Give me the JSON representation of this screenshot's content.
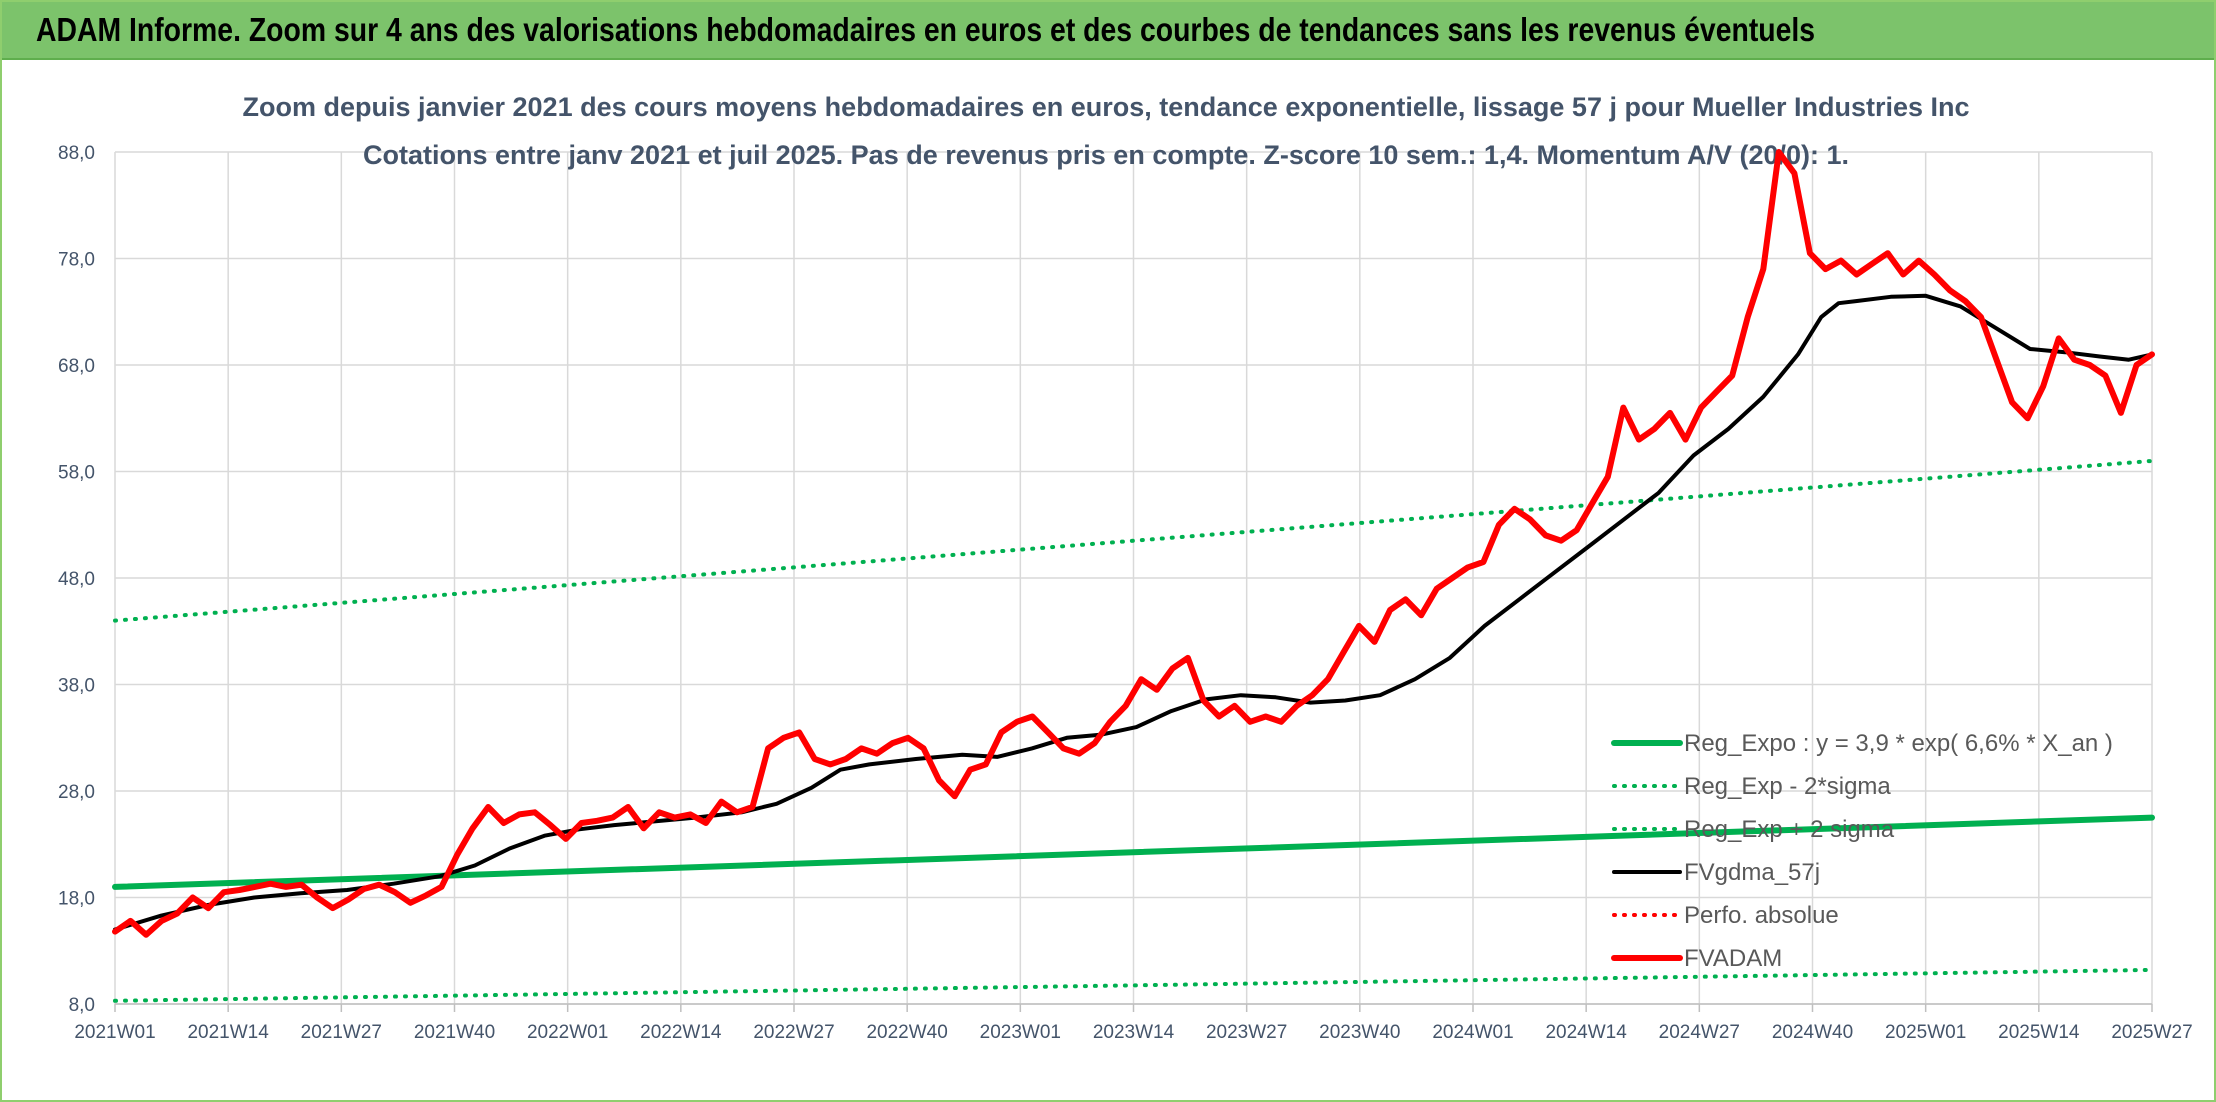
{
  "banner": {
    "title": "ADAM Informe. Zoom sur 4 ans des valorisations hebdomadaires en euros et des courbes de tendances sans les revenus éventuels"
  },
  "colors": {
    "banner_bg": "#7cc36b",
    "green": "#00b050",
    "red": "#ff0000",
    "black": "#000000",
    "grid": "#d9d9d9",
    "text": "#44546a"
  },
  "chart_data": {
    "type": "line",
    "subtitle_lines": [
      "Zoom depuis janvier 2021 des cours moyens hebdomadaires en euros, tendance exponentielle, lissage 57 j pour Mueller Industries Inc",
      "Cotations entre janv 2021 et juil 2025. Pas de revenus pris en compte. Z-score 10 sem.: 1,4. Momentum A/V (20/0): 1."
    ],
    "ylim": [
      8,
      88
    ],
    "yticks": [
      "8,0",
      "18,0",
      "28,0",
      "38,0",
      "48,0",
      "58,0",
      "68,0",
      "78,0",
      "88,0"
    ],
    "x_tick_labels": [
      "2021W01",
      "2021W14",
      "2021W27",
      "2021W40",
      "2022W01",
      "2022W14",
      "2022W27",
      "2022W40",
      "2023W01",
      "2023W14",
      "2023W27",
      "2023W40",
      "2024W01",
      "2024W14",
      "2024W27",
      "2024W40",
      "2025W01",
      "2025W14",
      "2025W27"
    ],
    "legend_position": "lower-right",
    "series": [
      {
        "name": "Reg_Expo : y = 3,9 * exp( 6,6% *  X_an )",
        "style": "solid-thick",
        "color": "#00b050",
        "points": [
          [
            0,
            19.0
          ],
          [
            234,
            25.5
          ]
        ]
      },
      {
        "name": "Reg_Exp - 2*sigma",
        "style": "dotted",
        "color": "#00b050",
        "points": [
          [
            0,
            8.3
          ],
          [
            234,
            11.2
          ]
        ]
      },
      {
        "name": "Reg_Exp + 2 sigma",
        "style": "dotted",
        "color": "#00b050",
        "points": [
          [
            0,
            44.0
          ],
          [
            234,
            59.0
          ]
        ]
      },
      {
        "name": "FVgdma_57j",
        "style": "solid",
        "color": "#000000",
        "points": [
          [
            0,
            15.0
          ],
          [
            8,
            16.3
          ],
          [
            16,
            17.3
          ],
          [
            24,
            18.0
          ],
          [
            32,
            18.4
          ],
          [
            40,
            18.7
          ],
          [
            48,
            19.3
          ],
          [
            56,
            20.0
          ],
          [
            62,
            21.0
          ],
          [
            68,
            22.6
          ],
          [
            74,
            23.8
          ],
          [
            80,
            24.4
          ],
          [
            86,
            24.8
          ],
          [
            92,
            25.1
          ],
          [
            100,
            25.5
          ],
          [
            108,
            26.0
          ],
          [
            114,
            26.8
          ],
          [
            120,
            28.3
          ],
          [
            125,
            30.0
          ],
          [
            130,
            30.5
          ],
          [
            138,
            31.0
          ],
          [
            146,
            31.4
          ],
          [
            152,
            31.2
          ],
          [
            158,
            32.0
          ],
          [
            164,
            33.0
          ],
          [
            170,
            33.3
          ],
          [
            176,
            34.0
          ],
          [
            182,
            35.5
          ],
          [
            188,
            36.6
          ],
          [
            194,
            37.0
          ],
          [
            200,
            36.8
          ],
          [
            206,
            36.3
          ],
          [
            212,
            36.5
          ],
          [
            218,
            37.0
          ],
          [
            224,
            38.5
          ],
          [
            230,
            40.5
          ],
          [
            236,
            43.5
          ],
          [
            242,
            46.0
          ],
          [
            248,
            48.5
          ],
          [
            254,
            51.0
          ],
          [
            260,
            53.5
          ],
          [
            266,
            56.0
          ],
          [
            272,
            59.5
          ],
          [
            278,
            62.0
          ],
          [
            284,
            65.0
          ],
          [
            290,
            69.0
          ],
          [
            294,
            72.5
          ],
          [
            297,
            73.8
          ],
          [
            300,
            74.0
          ],
          [
            306,
            74.4
          ],
          [
            312,
            74.5
          ],
          [
            318,
            73.5
          ],
          [
            324,
            71.5
          ],
          [
            330,
            69.5
          ],
          [
            336,
            69.2
          ],
          [
            342,
            68.8
          ],
          [
            347,
            68.5
          ],
          [
            351,
            69.0
          ]
        ]
      },
      {
        "name": "Perfo. absolue",
        "style": "dotted",
        "color": "#ff0000",
        "points": []
      },
      {
        "name": "FVADAM",
        "style": "solid-thick",
        "color": "#ff0000",
        "points": [
          [
            0,
            14.8
          ],
          [
            2,
            15.8
          ],
          [
            4,
            14.5
          ],
          [
            6,
            15.8
          ],
          [
            8,
            16.5
          ],
          [
            10,
            18.0
          ],
          [
            12,
            17.0
          ],
          [
            14,
            18.5
          ],
          [
            16,
            18.7
          ],
          [
            18,
            19.0
          ],
          [
            20,
            19.3
          ],
          [
            22,
            19.0
          ],
          [
            24,
            19.2
          ],
          [
            26,
            18.0
          ],
          [
            28,
            17.0
          ],
          [
            30,
            17.8
          ],
          [
            32,
            18.8
          ],
          [
            34,
            19.2
          ],
          [
            36,
            18.5
          ],
          [
            38,
            17.5
          ],
          [
            40,
            18.2
          ],
          [
            42,
            19.0
          ],
          [
            44,
            22.0
          ],
          [
            46,
            24.5
          ],
          [
            48,
            26.5
          ],
          [
            50,
            25.0
          ],
          [
            52,
            25.8
          ],
          [
            54,
            26.0
          ],
          [
            56,
            24.8
          ],
          [
            58,
            23.5
          ],
          [
            60,
            25.0
          ],
          [
            62,
            25.2
          ],
          [
            64,
            25.5
          ],
          [
            66,
            26.5
          ],
          [
            68,
            24.5
          ],
          [
            70,
            26.0
          ],
          [
            72,
            25.5
          ],
          [
            74,
            25.8
          ],
          [
            76,
            25.0
          ],
          [
            78,
            27.0
          ],
          [
            80,
            26.0
          ],
          [
            82,
            26.5
          ],
          [
            84,
            32.0
          ],
          [
            86,
            33.0
          ],
          [
            88,
            33.5
          ],
          [
            90,
            31.0
          ],
          [
            92,
            30.5
          ],
          [
            94,
            31.0
          ],
          [
            96,
            32.0
          ],
          [
            98,
            31.5
          ],
          [
            100,
            32.5
          ],
          [
            102,
            33.0
          ],
          [
            104,
            32.0
          ],
          [
            106,
            29.0
          ],
          [
            108,
            27.5
          ],
          [
            110,
            30.0
          ],
          [
            112,
            30.5
          ],
          [
            114,
            33.5
          ],
          [
            116,
            34.5
          ],
          [
            118,
            35.0
          ],
          [
            120,
            33.5
          ],
          [
            122,
            32.0
          ],
          [
            124,
            31.5
          ],
          [
            126,
            32.5
          ],
          [
            128,
            34.5
          ],
          [
            130,
            36.0
          ],
          [
            132,
            38.5
          ],
          [
            134,
            37.5
          ],
          [
            136,
            39.5
          ],
          [
            138,
            40.5
          ],
          [
            140,
            36.5
          ],
          [
            142,
            35.0
          ],
          [
            144,
            36.0
          ],
          [
            146,
            34.5
          ],
          [
            148,
            35.0
          ],
          [
            150,
            34.5
          ],
          [
            152,
            36.0
          ],
          [
            154,
            37.0
          ],
          [
            156,
            38.5
          ],
          [
            158,
            41.0
          ],
          [
            160,
            43.5
          ],
          [
            162,
            42.0
          ],
          [
            164,
            45.0
          ],
          [
            166,
            46.0
          ],
          [
            168,
            44.5
          ],
          [
            170,
            47.0
          ],
          [
            172,
            48.0
          ],
          [
            174,
            49.0
          ],
          [
            176,
            49.5
          ],
          [
            178,
            53.0
          ],
          [
            180,
            54.5
          ],
          [
            182,
            53.5
          ],
          [
            184,
            52.0
          ],
          [
            186,
            51.5
          ],
          [
            188,
            52.5
          ],
          [
            190,
            55.0
          ],
          [
            192,
            57.5
          ],
          [
            194,
            64.0
          ],
          [
            196,
            61.0
          ],
          [
            198,
            62.0
          ],
          [
            200,
            63.5
          ],
          [
            202,
            61.0
          ],
          [
            204,
            64.0
          ],
          [
            206,
            65.5
          ],
          [
            208,
            67.0
          ],
          [
            210,
            72.5
          ],
          [
            212,
            77.0
          ],
          [
            214,
            88.5
          ],
          [
            216,
            86.0
          ],
          [
            218,
            78.5
          ],
          [
            220,
            77.0
          ],
          [
            222,
            77.8
          ],
          [
            224,
            76.5
          ],
          [
            226,
            77.5
          ],
          [
            228,
            78.5
          ],
          [
            230,
            76.5
          ],
          [
            232,
            77.8
          ],
          [
            234,
            76.5
          ],
          [
            236,
            75.0
          ],
          [
            238,
            74.0
          ],
          [
            240,
            72.5
          ],
          [
            242,
            68.5
          ],
          [
            244,
            64.5
          ],
          [
            246,
            63.0
          ],
          [
            248,
            66.0
          ],
          [
            250,
            70.5
          ],
          [
            252,
            68.5
          ],
          [
            254,
            68.0
          ],
          [
            256,
            67.0
          ],
          [
            258,
            63.5
          ],
          [
            260,
            68.0
          ],
          [
            262,
            69.0
          ]
        ]
      }
    ],
    "x_scale_note": "Series x values are in weeks since 2021W01 (week index); FVADAM uses its own doubled index mapped across the same span."
  }
}
